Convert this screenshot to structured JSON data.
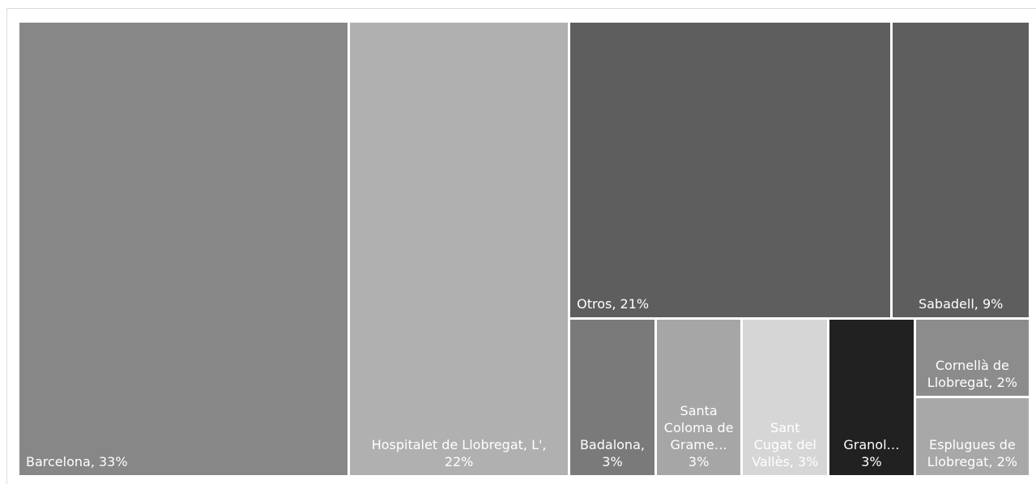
{
  "chart_data": {
    "type": "treemap",
    "value_labels": [
      "Barcelona, 33%",
      "Hospitalet de Llobregat, L', 22%",
      "Otros, 21%",
      "Sabadell, 9%",
      "Badalona, 3%",
      "Santa Coloma de Grame… 3%",
      "Sant Cugat del Vallès, 3%",
      "Granol… 3%",
      "Cornellà de Llobregat, 2%",
      "Esplugues de Llobregat, 2%"
    ],
    "values": [
      33,
      22,
      21,
      9,
      3,
      3,
      3,
      3,
      2,
      2
    ],
    "colors": [
      "#878787",
      "#b0b0b0",
      "#5e5e5e",
      "#5e5e5e",
      "#7a7a7a",
      "#a6a6a6",
      "#d6d6d6",
      "#212121",
      "#8c8c8c",
      "#a8a8a8"
    ]
  }
}
